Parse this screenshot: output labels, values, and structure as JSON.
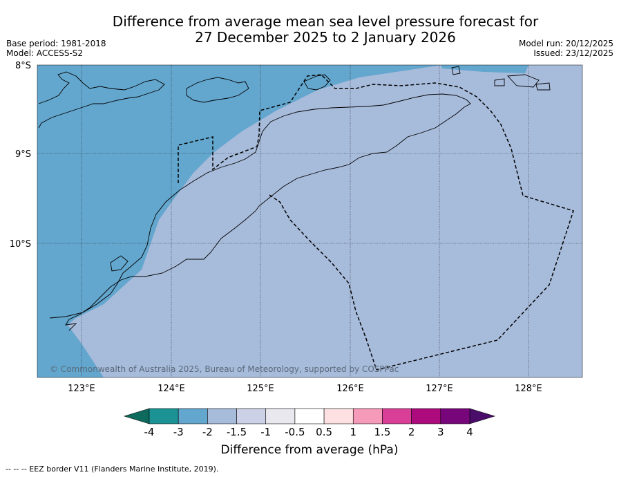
{
  "title_line1": "Difference from average mean sea level pressure forecast for",
  "title_line2": "27 December 2025 to 2 January 2026",
  "base_period": "Base period: 1981-2018",
  "model": "Model: ACCESS-S2",
  "model_run": "Model run: 20/12/2025",
  "issued": "Issued: 23/12/2025",
  "lat_labels": [
    "8°S",
    "9°S",
    "10°S"
  ],
  "lon_labels": [
    "123°E",
    "124°E",
    "125°E",
    "126°E",
    "127°E",
    "128°E"
  ],
  "copyright": "© Commonwealth of Australia 2025, Bureau of Meteorology, supported by COSPPac",
  "colorbar": {
    "title": "Difference from average (hPa)",
    "labels": [
      "-4",
      "-3",
      "-2",
      "-1.5",
      "-1",
      "-0.5",
      "0.5",
      "1",
      "1.5",
      "2",
      "3",
      "4"
    ],
    "colors": [
      "#1b9395",
      "#63a6ce",
      "#a7bbdb",
      "#cdd1e7",
      "#e8e8ee",
      "#ffffff",
      "#fde1e2",
      "#f59ab8",
      "#da3f98",
      "#ac0a7d",
      "#78067b"
    ],
    "under_color": "#0e6a5d",
    "over_color": "#4a0d6a"
  },
  "map_colors": {
    "strong_negative": "#63a6ce",
    "moderate_negative": "#a7bbdb"
  },
  "footnote": "-- -- -- EEZ border V11 (Flanders Marine Institute, 2019)."
}
